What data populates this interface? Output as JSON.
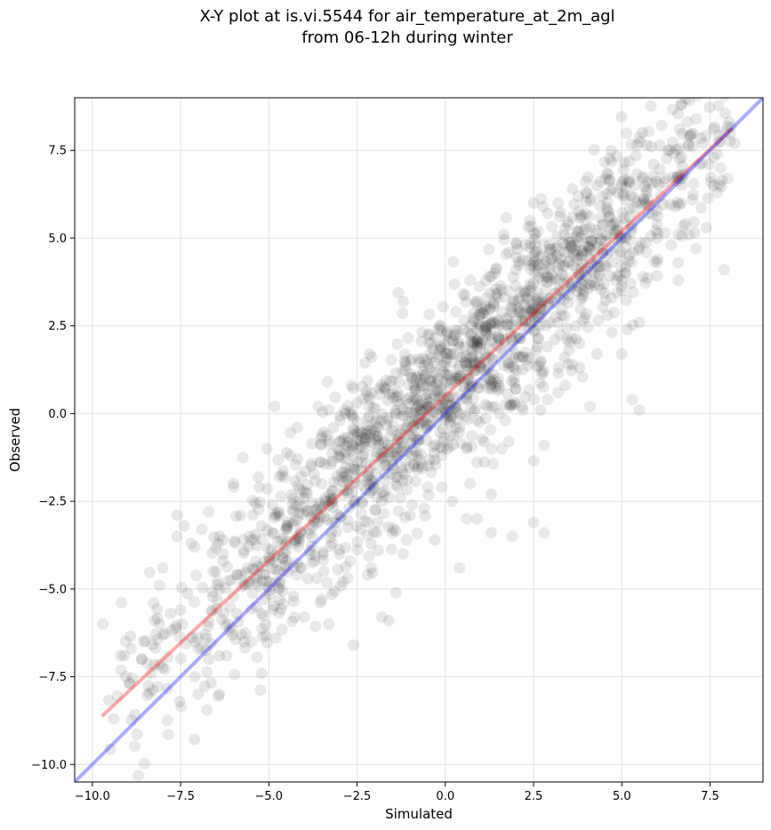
{
  "chart_data": {
    "type": "scatter",
    "title_line1": "X-Y plot at is.vi.5544 for air_temperature_at_2m_agl",
    "title_line2": "from 06-12h during winter",
    "xlabel": "Simulated",
    "ylabel": "Observed",
    "xlim": [
      -10.5,
      9.0
    ],
    "ylim": [
      -10.5,
      9.0
    ],
    "xticks": [
      -10.0,
      -7.5,
      -5.0,
      -2.5,
      0.0,
      2.5,
      5.0,
      7.5
    ],
    "yticks": [
      -10.0,
      -7.5,
      -5.0,
      -2.5,
      0.0,
      2.5,
      5.0,
      7.5
    ],
    "xtick_labels": [
      "−10.0",
      "−7.5",
      "−5.0",
      "−2.5",
      "0.0",
      "2.5",
      "5.0",
      "7.5"
    ],
    "ytick_labels": [
      "−10.0",
      "−7.5",
      "−5.0",
      "−2.5",
      "0.0",
      "2.5",
      "5.0",
      "7.5"
    ],
    "grid": true,
    "point_color": "#000000",
    "point_opacity": 0.09,
    "approx_point_count": 1800,
    "cloud_model": {
      "slope": 0.95,
      "intercept": 0.62,
      "x_center": 0.5,
      "x_spread": 4.2,
      "residual_sd": 1.25,
      "x_min": -9.7,
      "x_max": 8.2
    },
    "series": [
      {
        "type": "points",
        "values": [
          [
            -9.7,
            -6.0
          ],
          [
            -9.2,
            -6.9
          ],
          [
            -9.1,
            -6.9
          ],
          [
            -8.6,
            -7.0
          ],
          [
            -8.1,
            -6.0
          ],
          [
            -8.0,
            -6.3
          ],
          [
            -8.1,
            -4.9
          ],
          [
            -8.0,
            -4.4
          ],
          [
            -7.6,
            -2.9
          ],
          [
            -7.6,
            -3.5
          ],
          [
            -7.4,
            -3.2
          ],
          [
            -7.2,
            -3.7
          ],
          [
            -7.1,
            -3.8
          ],
          [
            -6.9,
            -3.3
          ],
          [
            -6.7,
            -2.8
          ],
          [
            -6.4,
            -3.5
          ],
          [
            -6.3,
            -3.6
          ],
          [
            -6.3,
            -4.2
          ],
          [
            -6.5,
            -4.5
          ],
          [
            -6.0,
            -2.1
          ],
          [
            -6.0,
            -2.0
          ],
          [
            -5.7,
            -3.9
          ],
          [
            -6.4,
            -5.0
          ],
          [
            -6.1,
            -5.5
          ],
          [
            -6.4,
            -6.9
          ],
          [
            -6.2,
            -6.9
          ],
          [
            -6.7,
            -7.0
          ],
          [
            -7.1,
            -7.5
          ],
          [
            -7.0,
            -8.0
          ],
          [
            -6.4,
            -8.0
          ],
          [
            -5.2,
            -7.4
          ],
          [
            -5.5,
            -6.5
          ],
          [
            -4.8,
            -6.4
          ],
          [
            -4.0,
            -5.8
          ],
          [
            -3.3,
            -6.0
          ],
          [
            -2.6,
            -6.6
          ],
          [
            -1.8,
            -5.8
          ],
          [
            -1.6,
            -5.9
          ],
          [
            -1.4,
            -5.1
          ],
          [
            -2.2,
            -4.6
          ],
          [
            -2.9,
            -4.8
          ],
          [
            -3.5,
            -5.3
          ],
          [
            -3.9,
            -4.7
          ],
          [
            -4.6,
            -4.1
          ],
          [
            -4.9,
            -3.4
          ],
          [
            -4.5,
            -3.2
          ],
          [
            -4.0,
            -2.4
          ],
          [
            -4.2,
            -0.4
          ],
          [
            -3.6,
            0.2
          ],
          [
            -3.3,
            0.1
          ],
          [
            -2.6,
            -0.6
          ],
          [
            -2.2,
            0.5
          ],
          [
            -1.5,
            0.6
          ],
          [
            -1.1,
            0.4
          ],
          [
            -0.8,
            0.4
          ],
          [
            -0.4,
            0.9
          ],
          [
            -1.0,
            1.5
          ],
          [
            -0.2,
            2.4
          ],
          [
            0.3,
            2.9
          ],
          [
            0.5,
            3.4
          ],
          [
            0.9,
            3.2
          ],
          [
            0.8,
            2.7
          ],
          [
            1.2,
            2.7
          ],
          [
            1.5,
            2.2
          ],
          [
            1.4,
            4.0
          ],
          [
            1.8,
            4.6
          ],
          [
            2.0,
            4.1
          ],
          [
            2.5,
            4.5
          ],
          [
            2.4,
            5.5
          ],
          [
            2.5,
            6.0
          ],
          [
            2.9,
            5.7
          ],
          [
            3.2,
            6.0
          ],
          [
            3.6,
            6.4
          ],
          [
            4.0,
            6.3
          ],
          [
            4.3,
            6.5
          ],
          [
            4.7,
            7.5
          ],
          [
            5.2,
            6.6
          ],
          [
            5.6,
            6.7
          ],
          [
            5.9,
            7.1
          ],
          [
            6.3,
            7.5
          ],
          [
            6.7,
            7.3
          ],
          [
            7.3,
            7.7
          ],
          [
            7.6,
            7.3
          ],
          [
            8.2,
            7.7
          ],
          [
            7.9,
            4.1
          ],
          [
            7.1,
            4.7
          ],
          [
            6.6,
            5.1
          ],
          [
            6.8,
            5.4
          ],
          [
            6.6,
            4.3
          ],
          [
            5.6,
            3.9
          ],
          [
            5.0,
            3.8
          ],
          [
            5.5,
            2.6
          ],
          [
            4.6,
            2.8
          ],
          [
            3.8,
            2.0
          ],
          [
            4.1,
            0.2
          ],
          [
            5.3,
            0.4
          ],
          [
            5.5,
            0.1
          ],
          [
            5.0,
            1.7
          ],
          [
            3.4,
            0.8
          ],
          [
            2.7,
            0.1
          ],
          [
            3.2,
            0.6
          ],
          [
            2.2,
            0.1
          ],
          [
            1.7,
            -0.2
          ],
          [
            1.8,
            -0.8
          ],
          [
            1.1,
            -0.8
          ],
          [
            0.6,
            -1.0
          ],
          [
            0.7,
            -2.0
          ],
          [
            -0.1,
            -2.1
          ],
          [
            -0.5,
            -2.1
          ],
          [
            -0.9,
            -1.5
          ],
          [
            -1.4,
            -1.8
          ],
          [
            -1.8,
            -2.5
          ],
          [
            -1.0,
            -2.9
          ],
          [
            -0.6,
            -2.7
          ],
          [
            -1.1,
            -3.6
          ],
          [
            -1.5,
            -3.4
          ],
          [
            -2.1,
            -2.2
          ],
          [
            -2.6,
            -2.5
          ],
          [
            -3.1,
            -3.1
          ],
          [
            -1.9,
            -3.9
          ],
          [
            -2.1,
            -4.4
          ],
          [
            -2.7,
            -4.2
          ],
          [
            0.2,
            -2.5
          ],
          [
            0.6,
            -3.0
          ],
          [
            0.9,
            -3.0
          ],
          [
            1.3,
            -2.3
          ],
          [
            1.9,
            -3.5
          ],
          [
            2.5,
            -3.1
          ],
          [
            2.8,
            -3.4
          ],
          [
            1.3,
            -3.4
          ],
          [
            0.4,
            -4.4
          ],
          [
            -0.3,
            -3.6
          ],
          [
            -1.2,
            -4.0
          ],
          [
            -0.1,
            -1.2
          ],
          [
            0.9,
            -1.4
          ],
          [
            1.6,
            -1.0
          ],
          [
            2.8,
            -0.9
          ],
          [
            2.9,
            0.4
          ],
          [
            0.0,
            0.9
          ],
          [
            -0.7,
            0.1
          ],
          [
            -1.9,
            -0.4
          ],
          [
            -2.5,
            0.3
          ],
          [
            1.0,
            1.3
          ],
          [
            1.5,
            1.0
          ],
          [
            2.2,
            1.6
          ],
          [
            2.8,
            1.2
          ],
          [
            3.1,
            2.1
          ],
          [
            3.6,
            1.4
          ],
          [
            4.3,
            1.7
          ],
          [
            4.7,
            3.3
          ],
          [
            5.0,
            3.5
          ],
          [
            5.7,
            4.6
          ],
          [
            6.0,
            4.3
          ],
          [
            6.4,
            4.8
          ],
          [
            6.9,
            5.1
          ],
          [
            7.4,
            5.3
          ],
          [
            7.7,
            6.3
          ],
          [
            8.0,
            6.7
          ],
          [
            7.8,
            7.0
          ],
          [
            -8.9,
            -6.7
          ],
          [
            -8.6,
            -7.0
          ],
          [
            -7.5,
            -5.6
          ],
          [
            -7.0,
            -6.7
          ],
          [
            -5.9,
            -5.7
          ],
          [
            -5.6,
            -4.4
          ],
          [
            -5.2,
            -3.2
          ],
          [
            -4.7,
            -1.8
          ],
          [
            -4.4,
            -1.2
          ],
          [
            -3.8,
            -1.5
          ],
          [
            -3.0,
            -1.2
          ],
          [
            -2.5,
            -1.6
          ],
          [
            -3.2,
            -2.5
          ],
          [
            -3.7,
            -3.0
          ],
          [
            -4.3,
            -2.8
          ],
          [
            -4.9,
            -2.6
          ],
          [
            -5.5,
            -3.6
          ],
          [
            -5.9,
            -4.6
          ],
          [
            -6.6,
            -5.6
          ],
          [
            -6.8,
            -6.3
          ],
          [
            -5.7,
            -6.5
          ],
          [
            -5.1,
            -5.3
          ],
          [
            -4.3,
            -5.2
          ],
          [
            -3.7,
            -4.2
          ],
          [
            -3.2,
            -3.7
          ],
          [
            -2.4,
            -3.3
          ],
          [
            -1.6,
            -2.4
          ],
          [
            -0.8,
            -1.2
          ],
          [
            0.3,
            -0.4
          ],
          [
            1.2,
            0.2
          ],
          [
            2.0,
            0.7
          ],
          [
            2.6,
            1.9
          ],
          [
            3.3,
            2.8
          ],
          [
            3.9,
            3.3
          ],
          [
            4.4,
            4.2
          ],
          [
            4.9,
            4.9
          ],
          [
            5.5,
            5.6
          ],
          [
            6.1,
            6.2
          ],
          [
            6.7,
            6.8
          ],
          [
            7.2,
            7.1
          ],
          [
            -0.5,
            0.2
          ],
          [
            -0.2,
            1.6
          ],
          [
            0.4,
            1.9
          ],
          [
            0.9,
            2.4
          ],
          [
            1.6,
            2.9
          ],
          [
            2.3,
            3.5
          ],
          [
            3.0,
            4.4
          ],
          [
            3.5,
            5.0
          ],
          [
            4.1,
            5.3
          ],
          [
            4.6,
            5.8
          ],
          [
            5.1,
            6.1
          ],
          [
            5.7,
            6.3
          ],
          [
            6.2,
            6.6
          ],
          [
            3.8,
            5.2
          ],
          [
            3.6,
            5.6
          ],
          [
            3.7,
            4.8
          ],
          [
            4.0,
            5.0
          ],
          [
            3.4,
            3.9
          ],
          [
            3.9,
            3.8
          ],
          [
            -1.3,
            -0.7
          ],
          [
            -2.9,
            -1.8
          ],
          [
            -3.5,
            -2.0
          ],
          [
            -4.1,
            -3.4
          ],
          [
            -4.5,
            -3.9
          ],
          [
            -5.0,
            -4.1
          ],
          [
            -5.4,
            -4.7
          ],
          [
            -6.0,
            -5.2
          ],
          [
            -4.2,
            -4.6
          ],
          [
            -3.0,
            -4.0
          ],
          [
            -2.2,
            -3.1
          ],
          [
            -1.7,
            -1.1
          ],
          [
            -0.3,
            0.5
          ],
          [
            0.6,
            1.4
          ],
          [
            1.9,
            2.1
          ],
          [
            2.9,
            3.2
          ],
          [
            4.5,
            3.7
          ],
          [
            5.2,
            4.5
          ],
          [
            6.0,
            5.0
          ],
          [
            6.5,
            5.9
          ],
          [
            7.0,
            6.1
          ],
          [
            7.6,
            6.5
          ]
        ]
      },
      {
        "type": "line",
        "name": "",
        "color": "#ff0000",
        "from": [
          -9.7,
          -8.6
        ],
        "to": [
          8.1,
          8.1
        ]
      },
      {
        "type": "line",
        "name": "",
        "color": "#0000ff",
        "from": [
          -10.5,
          -10.5
        ],
        "to": [
          9.0,
          9.0
        ]
      }
    ]
  }
}
